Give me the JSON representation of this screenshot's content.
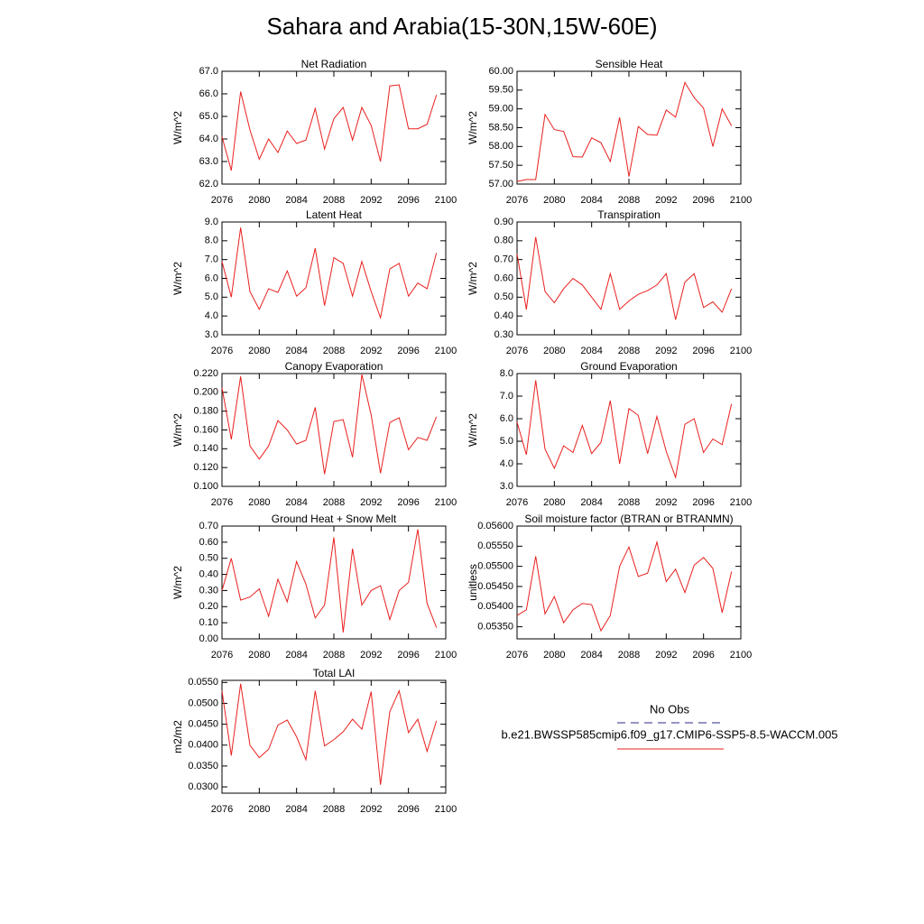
{
  "title": "Sahara and Arabia(15-30N,15W-60E)",
  "legend": {
    "entries": [
      {
        "name": "No Obs",
        "color": "#2a2a8a",
        "dashed": true
      },
      {
        "name": "b.e21.BWSSP585cmip6.f09_g17.CMIP6-SSP5-8.5-WACCM.005",
        "color": "#e8201e",
        "dashed": false
      }
    ]
  },
  "chart_data": [
    {
      "type": "line",
      "title": "Net Radiation",
      "ylabel": "W/m^2",
      "color": "#e8201e",
      "x": [
        2076,
        2077,
        2078,
        2079,
        2080,
        2081,
        2082,
        2083,
        2084,
        2085,
        2086,
        2087,
        2088,
        2089,
        2090,
        2091,
        2092,
        2093,
        2094,
        2095,
        2096,
        2097,
        2098,
        2099
      ],
      "values": [
        64.1,
        62.6,
        66.1,
        64.4,
        63.1,
        64.0,
        63.4,
        64.35,
        63.8,
        63.95,
        65.35,
        63.55,
        64.9,
        65.4,
        63.95,
        65.4,
        64.6,
        63.0,
        66.35,
        66.4,
        64.45,
        64.45,
        64.65,
        65.95
      ],
      "xlim": [
        2076,
        2100
      ],
      "xticks": [
        2076,
        2080,
        2084,
        2088,
        2092,
        2096,
        2100
      ],
      "ylim": [
        62,
        67
      ],
      "yticks": [
        {
          "value": 62,
          "label": "62.0"
        },
        {
          "value": 63,
          "label": "63.0"
        },
        {
          "value": 64,
          "label": "64.0"
        },
        {
          "value": 65,
          "label": "65.0"
        },
        {
          "value": 66,
          "label": "66.0"
        },
        {
          "value": 67,
          "label": "67.0"
        }
      ]
    },
    {
      "type": "line",
      "title": "Sensible Heat",
      "ylabel": "W/m^2",
      "color": "#e8201e",
      "x": [
        2076,
        2077,
        2078,
        2079,
        2080,
        2081,
        2082,
        2083,
        2084,
        2085,
        2086,
        2087,
        2088,
        2089,
        2090,
        2091,
        2092,
        2093,
        2094,
        2095,
        2096,
        2097,
        2098,
        2099
      ],
      "values": [
        57.07,
        57.12,
        57.12,
        58.85,
        58.45,
        58.4,
        57.73,
        57.72,
        58.23,
        58.1,
        57.6,
        58.77,
        57.2,
        58.53,
        58.32,
        58.3,
        58.97,
        58.78,
        59.7,
        59.3,
        59.02,
        58.0,
        59.0,
        58.55
      ],
      "xlim": [
        2076,
        2100
      ],
      "xticks": [
        2076,
        2080,
        2084,
        2088,
        2092,
        2096,
        2100
      ],
      "ylim": [
        57,
        60
      ],
      "yticks": [
        {
          "value": 57,
          "label": "57.00"
        },
        {
          "value": 57.5,
          "label": "57.50"
        },
        {
          "value": 58,
          "label": "58.00"
        },
        {
          "value": 58.5,
          "label": "58.50"
        },
        {
          "value": 59,
          "label": "59.00"
        },
        {
          "value": 59.5,
          "label": "59.50"
        },
        {
          "value": 60,
          "label": "60.00"
        }
      ]
    },
    {
      "type": "line",
      "title": "Latent Heat",
      "ylabel": "W/m^2",
      "color": "#e8201e",
      "x": [
        2076,
        2077,
        2078,
        2079,
        2080,
        2081,
        2082,
        2083,
        2084,
        2085,
        2086,
        2087,
        2088,
        2089,
        2090,
        2091,
        2092,
        2093,
        2094,
        2095,
        2096,
        2097,
        2098,
        2099
      ],
      "values": [
        6.9,
        5.0,
        8.7,
        5.3,
        4.35,
        5.45,
        5.25,
        6.4,
        5.05,
        5.5,
        7.6,
        4.55,
        7.1,
        6.8,
        5.05,
        6.9,
        5.3,
        3.9,
        6.5,
        6.8,
        5.05,
        5.75,
        5.45,
        7.35
      ],
      "xlim": [
        2076,
        2100
      ],
      "xticks": [
        2076,
        2080,
        2084,
        2088,
        2092,
        2096,
        2100
      ],
      "ylim": [
        3,
        9
      ],
      "yticks": [
        {
          "value": 3,
          "label": "3.0"
        },
        {
          "value": 4,
          "label": "4.0"
        },
        {
          "value": 5,
          "label": "5.0"
        },
        {
          "value": 6,
          "label": "6.0"
        },
        {
          "value": 7,
          "label": "7.0"
        },
        {
          "value": 8,
          "label": "8.0"
        },
        {
          "value": 9,
          "label": "9.0"
        }
      ]
    },
    {
      "type": "line",
      "title": "Transpiration",
      "ylabel": "W/m^2",
      "color": "#e8201e",
      "x": [
        2076,
        2077,
        2078,
        2079,
        2080,
        2081,
        2082,
        2083,
        2084,
        2085,
        2086,
        2087,
        2088,
        2089,
        2090,
        2091,
        2092,
        2093,
        2094,
        2095,
        2096,
        2097,
        2098,
        2099
      ],
      "values": [
        0.73,
        0.435,
        0.82,
        0.53,
        0.47,
        0.545,
        0.6,
        0.565,
        0.5,
        0.435,
        0.625,
        0.435,
        0.48,
        0.515,
        0.535,
        0.565,
        0.625,
        0.38,
        0.58,
        0.625,
        0.445,
        0.475,
        0.42,
        0.545
      ],
      "xlim": [
        2076,
        2100
      ],
      "xticks": [
        2076,
        2080,
        2084,
        2088,
        2092,
        2096,
        2100
      ],
      "ylim": [
        0.3,
        0.9
      ],
      "yticks": [
        {
          "value": 0.3,
          "label": "0.30"
        },
        {
          "value": 0.4,
          "label": "0.40"
        },
        {
          "value": 0.5,
          "label": "0.50"
        },
        {
          "value": 0.6,
          "label": "0.60"
        },
        {
          "value": 0.7,
          "label": "0.70"
        },
        {
          "value": 0.8,
          "label": "0.80"
        },
        {
          "value": 0.9,
          "label": "0.90"
        }
      ]
    },
    {
      "type": "line",
      "title": "Canopy Evaporation",
      "ylabel": "W/m^2",
      "color": "#e8201e",
      "x": [
        2076,
        2077,
        2078,
        2079,
        2080,
        2081,
        2082,
        2083,
        2084,
        2085,
        2086,
        2087,
        2088,
        2089,
        2090,
        2091,
        2092,
        2093,
        2094,
        2095,
        2096,
        2097,
        2098,
        2099
      ],
      "values": [
        0.205,
        0.15,
        0.217,
        0.143,
        0.129,
        0.143,
        0.17,
        0.16,
        0.145,
        0.149,
        0.184,
        0.113,
        0.169,
        0.171,
        0.131,
        0.219,
        0.176,
        0.114,
        0.168,
        0.173,
        0.139,
        0.152,
        0.149,
        0.174
      ],
      "xlim": [
        2076,
        2100
      ],
      "xticks": [
        2076,
        2080,
        2084,
        2088,
        2092,
        2096,
        2100
      ],
      "ylim": [
        0.1,
        0.22
      ],
      "yticks": [
        {
          "value": 0.1,
          "label": "0.100"
        },
        {
          "value": 0.12,
          "label": "0.120"
        },
        {
          "value": 0.14,
          "label": "0.140"
        },
        {
          "value": 0.16,
          "label": "0.160"
        },
        {
          "value": 0.18,
          "label": "0.180"
        },
        {
          "value": 0.2,
          "label": "0.200"
        },
        {
          "value": 0.22,
          "label": "0.220"
        }
      ]
    },
    {
      "type": "line",
      "title": "Ground Evaporation",
      "ylabel": "W/m^2",
      "color": "#e8201e",
      "x": [
        2076,
        2077,
        2078,
        2079,
        2080,
        2081,
        2082,
        2083,
        2084,
        2085,
        2086,
        2087,
        2088,
        2089,
        2090,
        2091,
        2092,
        2093,
        2094,
        2095,
        2096,
        2097,
        2098,
        2099
      ],
      "values": [
        5.85,
        4.4,
        7.7,
        4.65,
        3.8,
        4.8,
        4.5,
        5.7,
        4.45,
        4.95,
        6.8,
        4.0,
        6.45,
        6.15,
        4.45,
        6.1,
        4.55,
        3.4,
        5.75,
        6.0,
        4.5,
        5.1,
        4.85,
        6.65
      ],
      "xlim": [
        2076,
        2100
      ],
      "xticks": [
        2076,
        2080,
        2084,
        2088,
        2092,
        2096,
        2100
      ],
      "ylim": [
        3,
        8
      ],
      "yticks": [
        {
          "value": 3,
          "label": "3.0"
        },
        {
          "value": 4,
          "label": "4.0"
        },
        {
          "value": 5,
          "label": "5.0"
        },
        {
          "value": 6,
          "label": "6.0"
        },
        {
          "value": 7,
          "label": "7.0"
        },
        {
          "value": 8,
          "label": "8.0"
        }
      ]
    },
    {
      "type": "line",
      "title": "Ground Heat + Snow Melt",
      "ylabel": "W/m^2",
      "color": "#e8201e",
      "x": [
        2076,
        2077,
        2078,
        2079,
        2080,
        2081,
        2082,
        2083,
        2084,
        2085,
        2086,
        2087,
        2088,
        2089,
        2090,
        2091,
        2092,
        2093,
        2094,
        2095,
        2096,
        2097,
        2098,
        2099
      ],
      "values": [
        0.3,
        0.5,
        0.24,
        0.26,
        0.31,
        0.14,
        0.37,
        0.23,
        0.48,
        0.34,
        0.13,
        0.21,
        0.63,
        0.04,
        0.56,
        0.21,
        0.3,
        0.33,
        0.12,
        0.3,
        0.35,
        0.68,
        0.22,
        0.07
      ],
      "xlim": [
        2076,
        2100
      ],
      "xticks": [
        2076,
        2080,
        2084,
        2088,
        2092,
        2096,
        2100
      ],
      "ylim": [
        0,
        0.7
      ],
      "yticks": [
        {
          "value": 0,
          "label": "0.00"
        },
        {
          "value": 0.1,
          "label": "0.10"
        },
        {
          "value": 0.2,
          "label": "0.20"
        },
        {
          "value": 0.3,
          "label": "0.30"
        },
        {
          "value": 0.4,
          "label": "0.40"
        },
        {
          "value": 0.5,
          "label": "0.50"
        },
        {
          "value": 0.6,
          "label": "0.60"
        },
        {
          "value": 0.7,
          "label": "0.70"
        }
      ]
    },
    {
      "type": "line",
      "title": "Soil moisture factor (BTRAN or BTRANMN)",
      "ylabel": "unitless",
      "color": "#e8201e",
      "x": [
        2076,
        2077,
        2078,
        2079,
        2080,
        2081,
        2082,
        2083,
        2084,
        2085,
        2086,
        2087,
        2088,
        2089,
        2090,
        2091,
        2092,
        2093,
        2094,
        2095,
        2096,
        2097,
        2098,
        2099
      ],
      "values": [
        0.05378,
        0.05392,
        0.05525,
        0.05382,
        0.05425,
        0.0536,
        0.05392,
        0.05408,
        0.05405,
        0.0534,
        0.05378,
        0.055,
        0.05548,
        0.05475,
        0.05483,
        0.0556,
        0.05462,
        0.05493,
        0.05435,
        0.05503,
        0.05522,
        0.05495,
        0.05385,
        0.05487
      ],
      "xlim": [
        2076,
        2100
      ],
      "xticks": [
        2076,
        2080,
        2084,
        2088,
        2092,
        2096,
        2100
      ],
      "ylim": [
        0.0532,
        0.056
      ],
      "yticks": [
        {
          "value": 0.0535,
          "label": "0.05350"
        },
        {
          "value": 0.054,
          "label": "0.05400"
        },
        {
          "value": 0.0545,
          "label": "0.05450"
        },
        {
          "value": 0.055,
          "label": "0.05500"
        },
        {
          "value": 0.0555,
          "label": "0.05550"
        },
        {
          "value": 0.056,
          "label": "0.05600"
        }
      ]
    },
    {
      "type": "line",
      "title": "Total LAI",
      "ylabel": "m2/m2",
      "color": "#e8201e",
      "x": [
        2076,
        2077,
        2078,
        2079,
        2080,
        2081,
        2082,
        2083,
        2084,
        2085,
        2086,
        2087,
        2088,
        2089,
        2090,
        2091,
        2092,
        2093,
        2094,
        2095,
        2096,
        2097,
        2098,
        2099
      ],
      "values": [
        0.053,
        0.0375,
        0.0547,
        0.04,
        0.037,
        0.039,
        0.0448,
        0.046,
        0.042,
        0.0365,
        0.053,
        0.0398,
        0.0413,
        0.0432,
        0.0462,
        0.0438,
        0.0528,
        0.0305,
        0.048,
        0.053,
        0.043,
        0.0462,
        0.0385,
        0.0458
      ],
      "xlim": [
        2076,
        2100
      ],
      "xticks": [
        2076,
        2080,
        2084,
        2088,
        2092,
        2096,
        2100
      ],
      "ylim": [
        0.0285,
        0.0555
      ],
      "yticks": [
        {
          "value": 0.03,
          "label": "0.0300"
        },
        {
          "value": 0.035,
          "label": "0.0350"
        },
        {
          "value": 0.04,
          "label": "0.0400"
        },
        {
          "value": 0.045,
          "label": "0.0450"
        },
        {
          "value": 0.05,
          "label": "0.0500"
        },
        {
          "value": 0.055,
          "label": "0.0550"
        }
      ]
    }
  ]
}
